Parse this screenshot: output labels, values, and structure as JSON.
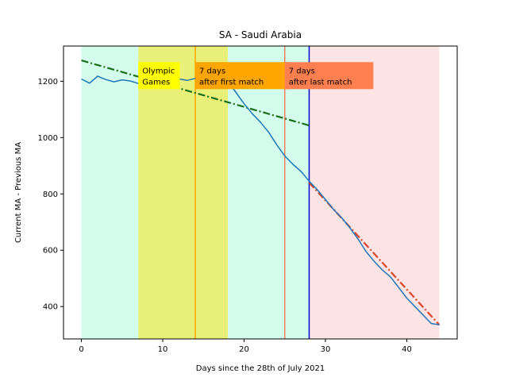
{
  "chart_data": {
    "type": "line",
    "title": "SA - Saudi Arabia",
    "xlabel": "Days since the 28th of July 2021",
    "ylabel": "Current MA - Previous MA",
    "xlim": [
      -2.2,
      46.2
    ],
    "ylim": [
      285,
      1325
    ],
    "xticks": [
      0,
      10,
      20,
      30,
      40
    ],
    "yticks": [
      400,
      600,
      800,
      1000,
      1200
    ],
    "grid": false,
    "colors": {
      "pre_olympics_bg": "#d4fcec",
      "olympics_bg": "#e8f07a",
      "post_bg": "#fde4e4",
      "series": "#1f77b4",
      "trend_before": "#1a6e1a",
      "trend_after": "#d9442b",
      "line_first_match": "#ffa500",
      "line_last_match": "#f08060",
      "line_cutoff": "#0000cc"
    },
    "regions": [
      {
        "name": "pre",
        "x0": 0,
        "x1": 7
      },
      {
        "name": "olympics",
        "x0": 7,
        "x1": 18
      },
      {
        "name": "between",
        "x0": 18,
        "x1": 28
      },
      {
        "name": "post",
        "x0": 28,
        "x1": 44
      }
    ],
    "vlines": [
      {
        "x": 14,
        "kind": "first_match"
      },
      {
        "x": 25,
        "kind": "last_match"
      },
      {
        "x": 28,
        "kind": "cutoff"
      }
    ],
    "annotations": [
      {
        "lines": [
          "Olympic",
          "Games"
        ],
        "x": 7,
        "y": 1172,
        "bg": "#ffff00"
      },
      {
        "lines": [
          "7 days",
          "after first match"
        ],
        "x": 14,
        "y": 1172,
        "bg": "#ffa500"
      },
      {
        "lines": [
          "7 days",
          "after last match"
        ],
        "x": 25,
        "y": 1172,
        "bg": "#ff7f50"
      }
    ],
    "series": [
      {
        "x": [
          0,
          1,
          2,
          3,
          4,
          5,
          6,
          7,
          8,
          9,
          10,
          11,
          12,
          13,
          14,
          15,
          16,
          17,
          18,
          19,
          20,
          21,
          22,
          23,
          24,
          25,
          26,
          27,
          28,
          29,
          30,
          31,
          32,
          33,
          34,
          35,
          36,
          37,
          38,
          39,
          40,
          41,
          42,
          43,
          44
        ],
        "values": [
          1208,
          1193,
          1218,
          1206,
          1198,
          1205,
          1201,
          1192,
          1200,
          1207,
          1199,
          1204,
          1208,
          1203,
          1210,
          1206,
          1204,
          1208,
          1200,
          1160,
          1120,
          1085,
          1055,
          1020,
          975,
          935,
          905,
          880,
          845,
          815,
          780,
          745,
          715,
          680,
          640,
          595,
          560,
          530,
          505,
          468,
          430,
          400,
          370,
          340,
          335
        ]
      }
    ],
    "trend_before": {
      "x": [
        0,
        28
      ],
      "y": [
        1274,
        1043
      ]
    },
    "trend_after": {
      "x": [
        28,
        44
      ],
      "y": [
        840,
        335
      ]
    }
  }
}
